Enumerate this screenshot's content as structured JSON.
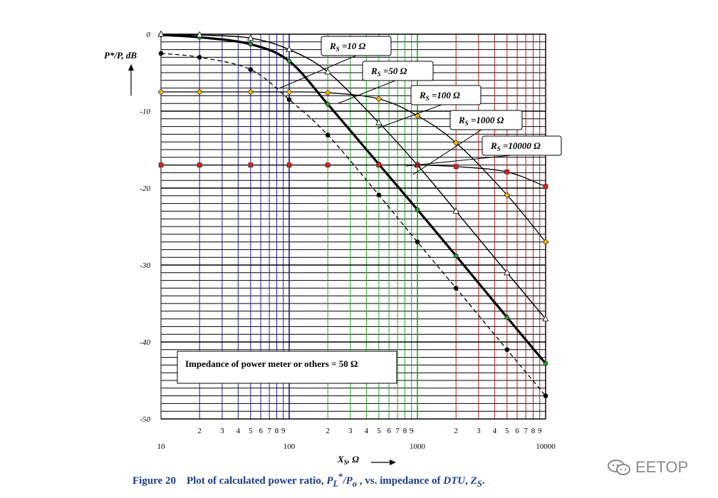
{
  "chart_data": {
    "type": "line",
    "x_scale": "log",
    "xlim": [
      10,
      10000
    ],
    "ylim": [
      -50,
      0
    ],
    "y_ticks": [
      0,
      -10,
      -20,
      -30,
      -40,
      -50
    ],
    "x_major_labels": [
      "10",
      "100",
      "1000",
      "10000"
    ],
    "x_minor_labels": [
      "2",
      "3",
      "4",
      "5",
      "6",
      "7",
      "8",
      "9"
    ],
    "ylabel": "P*/P, dB",
    "xlabel": "X",
    "xlabel_sub": "S",
    "xlabel_unit": ", Ω",
    "decade_colors": [
      "#1a1aa6",
      "#1fa51f",
      "#b01818"
    ],
    "series": [
      {
        "name": "R_S =10 Ω",
        "label_main": "R",
        "label_sub": "S",
        "label_rest": " =10 Ω",
        "color": "#000000",
        "width": 3.2,
        "dash": "",
        "marker": "circle",
        "marker_color": "#2aa02a",
        "x": [
          10,
          20,
          50,
          100,
          200,
          500,
          1000,
          2000,
          5000,
          10000
        ],
        "y": [
          -0.1,
          -0.4,
          -1.3,
          -3.5,
          -9.1,
          -16.9,
          -22.8,
          -28.8,
          -36.8,
          -42.8
        ]
      },
      {
        "name": "R_S =50 Ω",
        "label_main": "R",
        "label_sub": "S",
        "label_rest": " =50 Ω",
        "color": "#000000",
        "width": 1.4,
        "dash": "",
        "marker": "triangle",
        "marker_color": "#ffffff",
        "x": [
          10,
          20,
          50,
          100,
          200,
          500,
          1000,
          2000,
          5000,
          10000
        ],
        "y": [
          0,
          -0.1,
          -0.5,
          -2.0,
          -4.9,
          -11.5,
          -17.0,
          -23.0,
          -31.0,
          -37.0
        ]
      },
      {
        "name": "R_S =100 Ω",
        "label_main": "R",
        "label_sub": "S",
        "label_rest": " =100 Ω",
        "color": "#000000",
        "width": 1.3,
        "dash": "6,4",
        "marker": "circle",
        "marker_color": "#000000",
        "x": [
          10,
          20,
          50,
          100,
          200,
          500,
          1000,
          2000,
          5000,
          10000
        ],
        "y": [
          -2.5,
          -3.0,
          -4.6,
          -8.5,
          -13.1,
          -20.9,
          -27.0,
          -33.0,
          -41.0,
          -47.0
        ]
      },
      {
        "name": "R_S =1000 Ω",
        "label_main": "R",
        "label_sub": "S",
        "label_rest": " =1000 Ω",
        "color": "#000000",
        "width": 1.3,
        "dash": "",
        "marker": "diamond",
        "marker_color": "#f0b400",
        "x": [
          10,
          20,
          50,
          100,
          200,
          500,
          1000,
          2000,
          5000,
          10000
        ],
        "y": [
          -7.5,
          -7.5,
          -7.5,
          -7.5,
          -7.6,
          -8.4,
          -10.6,
          -14.1,
          -20.9,
          -27.0
        ]
      },
      {
        "name": "R_S =10000 Ω",
        "label_main": "R",
        "label_sub": "S",
        "label_rest": " =10000 Ω",
        "color": "#000000",
        "width": 1.3,
        "dash": "",
        "marker": "square",
        "marker_color": "#e02020",
        "x": [
          10,
          20,
          50,
          100,
          200,
          500,
          1000,
          2000,
          5000,
          10000
        ],
        "y": [
          -17.0,
          -17.0,
          -17.0,
          -17.0,
          -17.0,
          -17.0,
          -17.0,
          -17.2,
          -17.9,
          -19.8
        ]
      }
    ],
    "annotation": "Impedance of power meter or others = 50 Ω"
  },
  "caption": {
    "figure": "Figure 20",
    "text1": "Plot of calculated  power ratio, ",
    "sym1": "P",
    "sym1_sub": "L",
    "sym1_sup": "*",
    "slash": "/",
    "sym2": "P",
    "sym2_sub": "o",
    "text2": " , vs. impedance of ",
    "sym3": "DTU",
    "text3": ", ",
    "sym4": "Z",
    "sym4_sub": "S",
    "end": "."
  },
  "watermark": {
    "text": "EETOP",
    "icon": "chat-bubbles-icon"
  }
}
